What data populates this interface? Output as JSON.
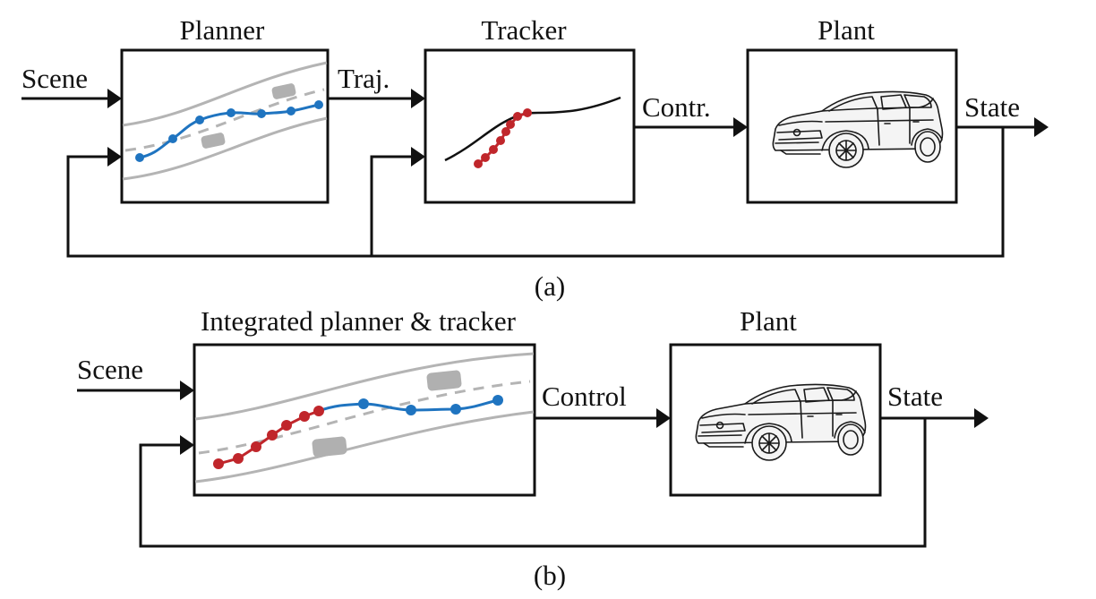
{
  "diagram_a": {
    "caption": "(a)",
    "planner_title": "Planner",
    "tracker_title": "Tracker",
    "plant_title": "Plant",
    "scene_label": "Scene",
    "traj_label": "Traj.",
    "contr_label": "Contr.",
    "state_label": "State"
  },
  "diagram_b": {
    "caption": "(b)",
    "integrated_title": "Integrated planner & tracker",
    "plant_title": "Plant",
    "scene_label": "Scene",
    "control_label": "Control",
    "state_label": "State"
  },
  "colors": {
    "planned_trajectory": "#1f74c0",
    "tracked_trajectory": "#c0262b",
    "road": "#b4b4b4",
    "obstacle": "#b0b0b0"
  },
  "icons": [
    "car-icon",
    "arrow-head-icon"
  ]
}
